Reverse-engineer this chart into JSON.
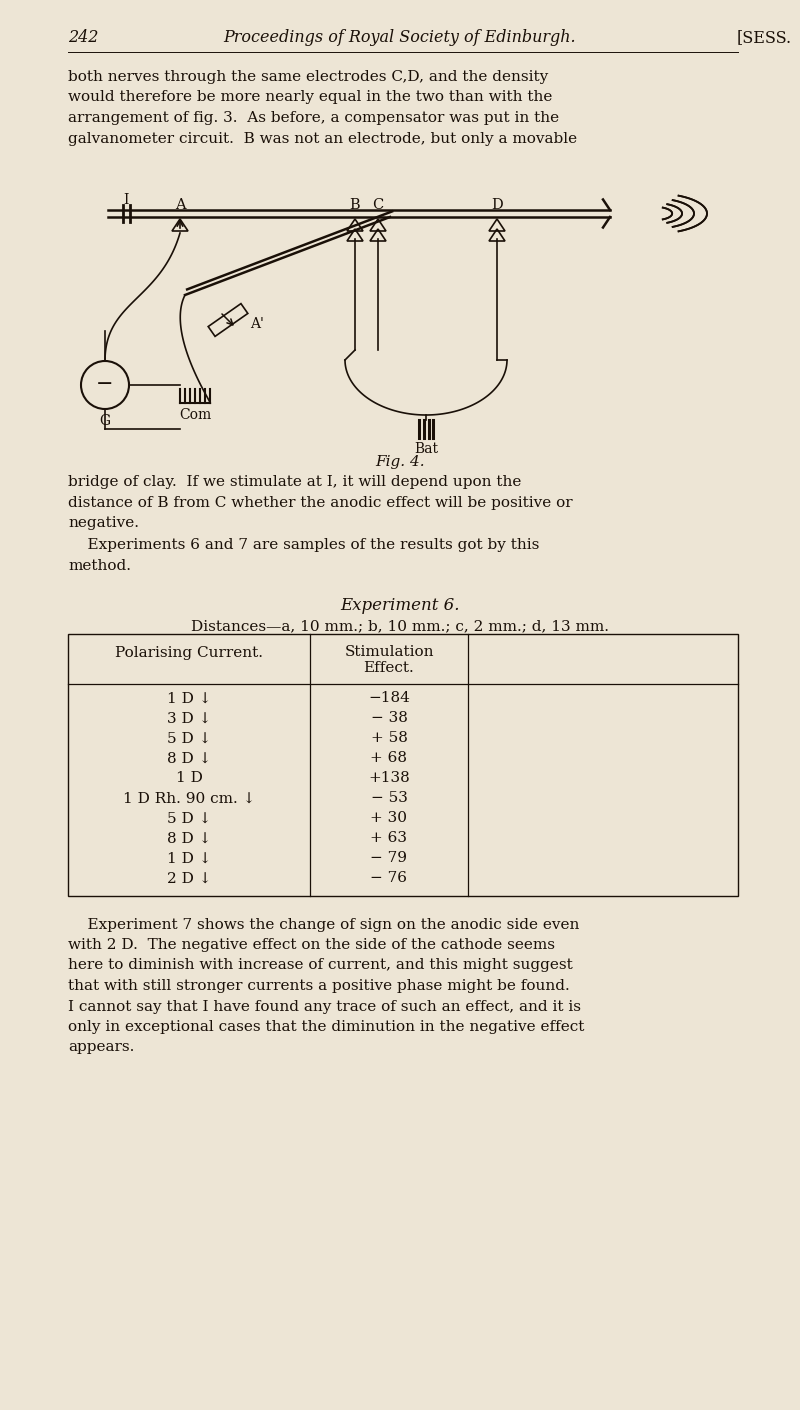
{
  "bg_color": "#ede5d5",
  "text_color": "#1a1008",
  "page_number": "242",
  "journal_title": "Proceedings of Royal Society of Edinburgh.",
  "sess_text": "[SESS.",
  "lines1": [
    "both nerves through the same electrodes C,D, and the density",
    "would therefore be more nearly equal in the two than with the",
    "arrangement of fig. 3.  As before, a compensator was put in the",
    "galvanometer circuit.  B was not an electrode, but only a movable"
  ],
  "lines2": [
    "bridge of clay.  If we stimulate at I, it will depend upon the",
    "distance of B from C whether the anodic effect will be positive or",
    "negative."
  ],
  "lines3": [
    "    Experiments 6 and 7 are samples of the results got by this",
    "method."
  ],
  "fig_caption": "Fig. 4.",
  "experiment_title": "Experiment 6.",
  "distances_text": "Distances—a, 10 mm.; b, 10 mm.; c, 2 mm.; d, 13 mm.",
  "col1_header": "Polarising Current.",
  "col2_header_1": "Stimulation",
  "col2_header_2": "Effect.",
  "table_rows": [
    [
      "1 D ↓",
      "−184"
    ],
    [
      "3 D ↓",
      "− 38"
    ],
    [
      "5 D ↓",
      "+ 58"
    ],
    [
      "8 D ↓",
      "+ 68"
    ],
    [
      "1 D",
      "+138"
    ],
    [
      "1 D Rh. 90 cm. ↓",
      "− 53"
    ],
    [
      "5 D ↓",
      "+ 30"
    ],
    [
      "8 D ↓",
      "+ 63"
    ],
    [
      "1 D ↓",
      "− 79"
    ],
    [
      "2 D ↓",
      "− 76"
    ]
  ],
  "lines4": [
    "    Experiment 7 shows the change of sign on the anodic side even",
    "with 2 D.  The negative effect on the side of the cathode seems",
    "here to diminish with increase of current, and this might suggest",
    "that with still stronger currents a positive phase might be found.",
    "I cannot say that I have found any trace of such an effect, and it is",
    "only in exceptional cases that the diminution in the negative effect",
    "appears."
  ]
}
